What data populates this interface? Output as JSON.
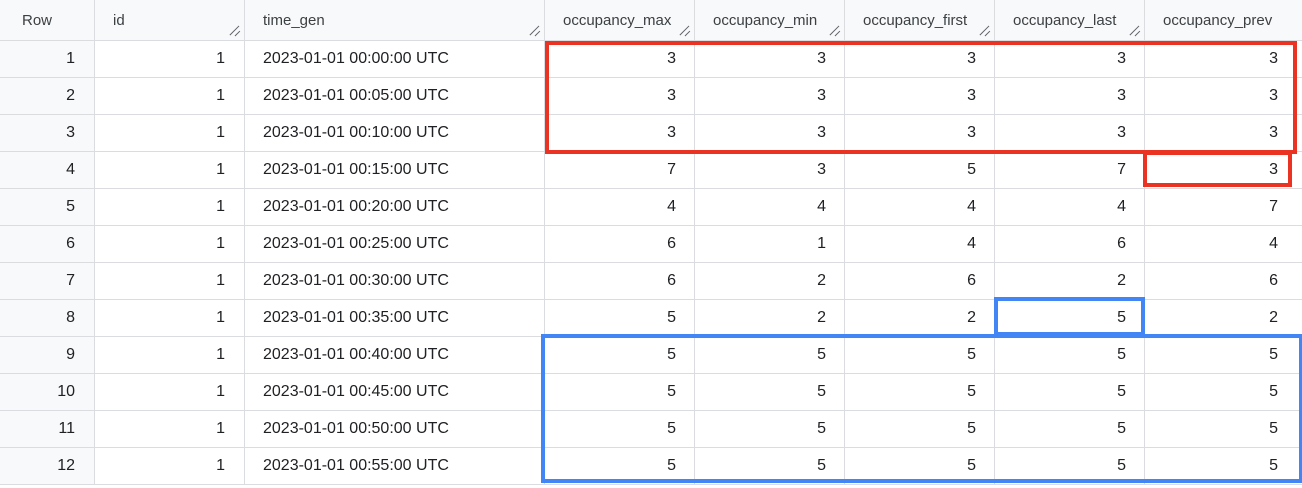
{
  "table": {
    "headers": [
      "Row",
      "id",
      "time_gen",
      "occupancy_max",
      "occupancy_min",
      "occupancy_first",
      "occupancy_last",
      "occupancy_prev"
    ],
    "rows": [
      [
        "1",
        "1",
        "2023-01-01 00:00:00 UTC",
        "3",
        "3",
        "3",
        "3",
        "3"
      ],
      [
        "2",
        "1",
        "2023-01-01 00:05:00 UTC",
        "3",
        "3",
        "3",
        "3",
        "3"
      ],
      [
        "3",
        "1",
        "2023-01-01 00:10:00 UTC",
        "3",
        "3",
        "3",
        "3",
        "3"
      ],
      [
        "4",
        "1",
        "2023-01-01 00:15:00 UTC",
        "7",
        "3",
        "5",
        "7",
        "3"
      ],
      [
        "5",
        "1",
        "2023-01-01 00:20:00 UTC",
        "4",
        "4",
        "4",
        "4",
        "7"
      ],
      [
        "6",
        "1",
        "2023-01-01 00:25:00 UTC",
        "6",
        "1",
        "4",
        "6",
        "4"
      ],
      [
        "7",
        "1",
        "2023-01-01 00:30:00 UTC",
        "6",
        "2",
        "6",
        "2",
        "6"
      ],
      [
        "8",
        "1",
        "2023-01-01 00:35:00 UTC",
        "5",
        "2",
        "2",
        "5",
        "2"
      ],
      [
        "9",
        "1",
        "2023-01-01 00:40:00 UTC",
        "5",
        "5",
        "5",
        "5",
        "5"
      ],
      [
        "10",
        "1",
        "2023-01-01 00:45:00 UTC",
        "5",
        "5",
        "5",
        "5",
        "5"
      ],
      [
        "11",
        "1",
        "2023-01-01 00:50:00 UTC",
        "5",
        "5",
        "5",
        "5",
        "5"
      ],
      [
        "12",
        "1",
        "2023-01-01 00:55:00 UTC",
        "5",
        "5",
        "5",
        "5",
        "5"
      ]
    ]
  },
  "colors": {
    "highlight_red": "#ea3323",
    "highlight_blue": "#4285f4",
    "grid_line": "#dadce0",
    "header_bg": "#f8f9fa",
    "active_tab": "#1a73e8"
  },
  "icons": {
    "column_resize": "column-resize-handle-icon"
  }
}
